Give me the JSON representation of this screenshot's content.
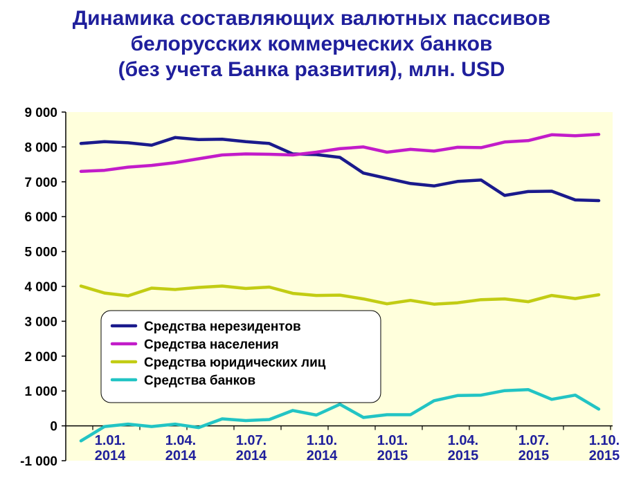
{
  "chart_data": {
    "type": "line",
    "title_lines": [
      "Динамика составляющих валютных пассивов",
      "белорусских коммерческих банков",
      "(без учета Банка развития), млн. USD"
    ],
    "xlabel": "",
    "ylabel": "",
    "ylim": [
      -1000,
      9000
    ],
    "yticks": [
      -1000,
      0,
      1000,
      2000,
      3000,
      4000,
      5000,
      6000,
      7000,
      8000,
      9000
    ],
    "ytick_labels": [
      "-1 000",
      "0",
      "1 000",
      "2 000",
      "3 000",
      "4 000",
      "5 000",
      "6 000",
      "7 000",
      "8 000",
      "9 000"
    ],
    "grid": false,
    "legend_position": "left-middle",
    "x_ticks": [
      {
        "index": 1,
        "line1": "1.01.",
        "line2": "2014"
      },
      {
        "index": 4,
        "line1": "1.04.",
        "line2": "2014"
      },
      {
        "index": 7,
        "line1": "1.07.",
        "line2": "2014"
      },
      {
        "index": 10,
        "line1": "1.10.",
        "line2": "2014"
      },
      {
        "index": 13,
        "line1": "1.01.",
        "line2": "2015"
      },
      {
        "index": 16,
        "line1": "1.04.",
        "line2": "2015"
      },
      {
        "index": 19,
        "line1": "1.07.",
        "line2": "2015"
      },
      {
        "index": 22,
        "line1": "1.10.",
        "line2": "2015"
      }
    ],
    "series": [
      {
        "name": "Средства нерезидентов",
        "color": "#1a1a8c",
        "values": [
          8100,
          8150,
          8120,
          8050,
          8270,
          8210,
          8220,
          8150,
          8100,
          7800,
          7780,
          7700,
          7250,
          7100,
          6950,
          6880,
          7010,
          7050,
          6610,
          6720,
          6730,
          6480,
          6460
        ]
      },
      {
        "name": "Средства населения",
        "color": "#c21cc9",
        "values": [
          7300,
          7330,
          7420,
          7470,
          7550,
          7660,
          7770,
          7800,
          7790,
          7770,
          7850,
          7950,
          8000,
          7850,
          7930,
          7880,
          7990,
          7980,
          8140,
          8180,
          8350,
          8320,
          8360
        ]
      },
      {
        "name": "Средства юридических лиц",
        "color": "#c2cc14",
        "values": [
          4010,
          3810,
          3730,
          3950,
          3910,
          3970,
          4010,
          3940,
          3980,
          3800,
          3740,
          3750,
          3640,
          3500,
          3600,
          3490,
          3530,
          3620,
          3640,
          3560,
          3740,
          3650,
          3760
        ]
      },
      {
        "name": "Средства банков",
        "color": "#22c4c4",
        "values": [
          -430,
          -20,
          50,
          -20,
          50,
          -50,
          200,
          150,
          180,
          440,
          310,
          620,
          240,
          320,
          320,
          720,
          870,
          880,
          1010,
          1040,
          760,
          880,
          480
        ]
      }
    ]
  }
}
